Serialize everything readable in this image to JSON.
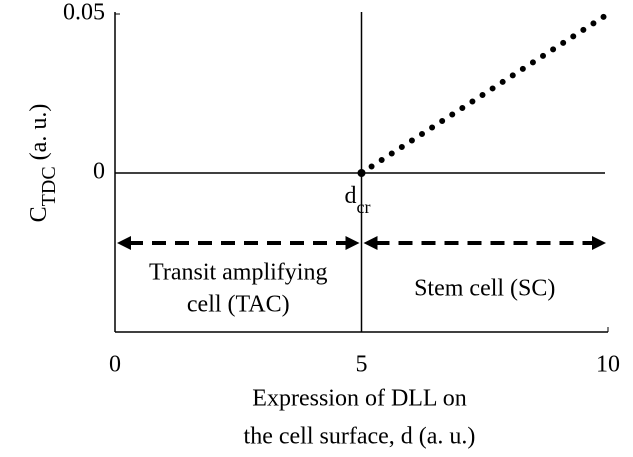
{
  "chart_data": {
    "type": "line",
    "ylabel": {
      "main": "C",
      "sub": "TDC",
      "rest": "(a. u.)"
    },
    "xlabel": [
      "Expression of DLL on",
      "the cell surface, d (a. u.)"
    ],
    "x": [
      5,
      10
    ],
    "series": [
      {
        "values": [
          0,
          0.05
        ],
        "color": "#000000",
        "style": "dotted"
      }
    ],
    "xlim": [
      0,
      10
    ],
    "xticks": [
      0,
      5,
      10
    ],
    "ylim": [
      -0.05,
      0.05
    ],
    "yticks": [
      0,
      0.05
    ],
    "reference_lines": {
      "x": 5,
      "y": 0
    },
    "point": {
      "x": 5,
      "y": 0,
      "label": "d",
      "sub": "cr"
    },
    "regions": [
      {
        "x": [
          0,
          5
        ],
        "label": [
          "Transit amplifying",
          "cell (TAC)"
        ]
      },
      {
        "x": [
          5,
          10
        ],
        "label": [
          "Stem cell (SC)"
        ]
      }
    ]
  }
}
